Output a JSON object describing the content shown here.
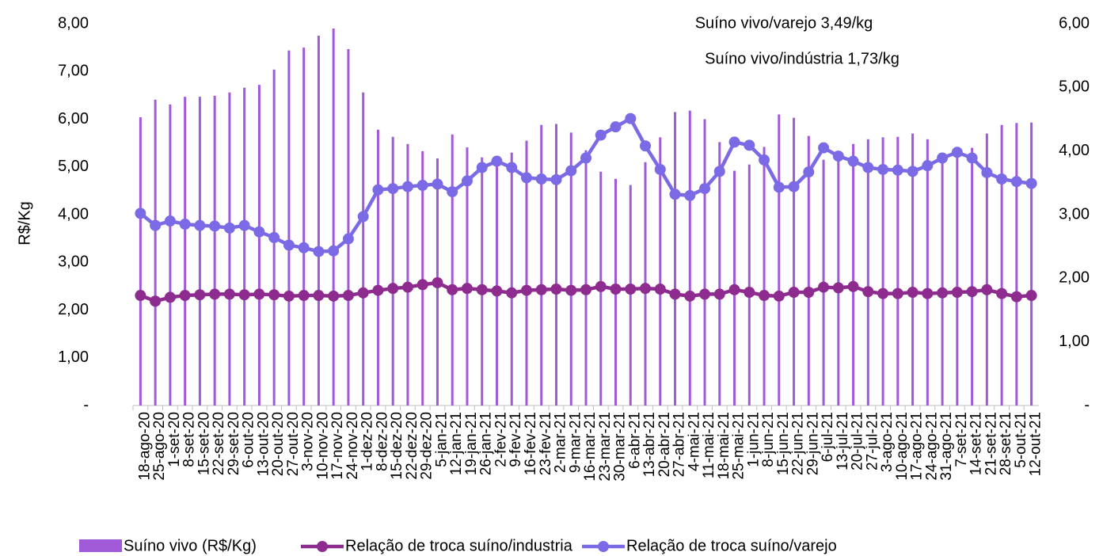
{
  "chart_data": {
    "type": "combo",
    "y_axis_label": "R$/Kg",
    "annotations": [
      "Suíno vivo/varejo 3,49/kg",
      "Suíno vivo/indústria 1,73/kg"
    ],
    "categories": [
      "18-ago-20",
      "25-ago-20",
      "1-set-20",
      "8-set-20",
      "15-set-20",
      "22-set-20",
      "29-set-20",
      "6-out-20",
      "13-out-20",
      "20-out-20",
      "27-out-20",
      "3-nov-20",
      "10-nov-20",
      "17-nov-20",
      "24-nov-20",
      "1-dez-20",
      "8-dez-20",
      "15-dez-20",
      "22-dez-20",
      "29-dez-20",
      "5-jan-21",
      "12-jan-21",
      "19-jan-21",
      "26-jan-21",
      "2-fev-21",
      "9-fev-21",
      "16-fev-21",
      "23-fev-21",
      "2-mar-21",
      "9-mar-21",
      "16-mar-21",
      "23-mar-21",
      "30-mar-21",
      "6-abr-21",
      "13-abr-21",
      "20-abr-21",
      "27-abr-21",
      "4-mai-21",
      "11-mai-21",
      "18-mai-21",
      "25-mai-21",
      "1-jun-21",
      "8-jun-21",
      "15-jun-21",
      "22-jun-21",
      "29-jun-21",
      "6-jul-21",
      "13-jul-21",
      "20-jul-21",
      "27-jul-21",
      "3-ago-21",
      "10-ago-21",
      "17-ago-21",
      "24-ago-21",
      "31-ago-21",
      "7-set-21",
      "14-set-21",
      "21-set-21",
      "28-set-21",
      "5-out-21",
      "12-out-21"
    ],
    "series": [
      {
        "name": "Suíno vivo (R$/Kg)",
        "type": "bar",
        "axis": "y",
        "color": "#a05ad8",
        "values": [
          6.04,
          6.41,
          6.31,
          6.47,
          6.47,
          6.49,
          6.56,
          6.66,
          6.72,
          7.04,
          7.44,
          7.5,
          7.75,
          7.9,
          7.47,
          6.56,
          5.78,
          5.63,
          5.48,
          5.33,
          5.18,
          5.68,
          5.41,
          5.2,
          5.2,
          5.3,
          5.55,
          5.88,
          5.9,
          5.72,
          5.35,
          4.9,
          4.75,
          4.62,
          5.1,
          5.62,
          6.15,
          6.18,
          6.0,
          5.52,
          4.92,
          5.05,
          5.42,
          6.1,
          6.03,
          5.65,
          5.15,
          5.3,
          5.48,
          5.58,
          5.62,
          5.63,
          5.7,
          5.58,
          5.2,
          5.35,
          5.4,
          5.7,
          5.88,
          5.92,
          5.93
        ]
      },
      {
        "name": "Relação de troca suíno/industria",
        "type": "line",
        "axis": "y2",
        "color": "#8e2b8e",
        "values": [
          1.73,
          1.64,
          1.7,
          1.73,
          1.74,
          1.75,
          1.75,
          1.74,
          1.75,
          1.74,
          1.72,
          1.73,
          1.73,
          1.72,
          1.73,
          1.77,
          1.81,
          1.84,
          1.86,
          1.9,
          1.93,
          1.82,
          1.84,
          1.82,
          1.8,
          1.77,
          1.81,
          1.82,
          1.83,
          1.81,
          1.82,
          1.87,
          1.83,
          1.83,
          1.84,
          1.83,
          1.75,
          1.72,
          1.75,
          1.75,
          1.82,
          1.78,
          1.73,
          1.72,
          1.78,
          1.78,
          1.86,
          1.85,
          1.87,
          1.79,
          1.76,
          1.76,
          1.78,
          1.76,
          1.77,
          1.78,
          1.79,
          1.82,
          1.76,
          1.71,
          1.73
        ]
      },
      {
        "name": "Relação de troca suíno/varejo",
        "type": "line",
        "axis": "y2",
        "color": "#7b6ae6",
        "values": [
          3.02,
          2.83,
          2.9,
          2.85,
          2.83,
          2.82,
          2.79,
          2.83,
          2.73,
          2.64,
          2.52,
          2.48,
          2.42,
          2.43,
          2.62,
          2.97,
          3.39,
          3.41,
          3.44,
          3.46,
          3.48,
          3.36,
          3.53,
          3.74,
          3.84,
          3.74,
          3.58,
          3.56,
          3.55,
          3.69,
          3.89,
          4.25,
          4.38,
          4.51,
          4.08,
          3.71,
          3.32,
          3.3,
          3.41,
          3.68,
          4.14,
          4.09,
          3.86,
          3.43,
          3.44,
          3.67,
          4.05,
          3.92,
          3.84,
          3.74,
          3.71,
          3.7,
          3.68,
          3.77,
          3.89,
          3.98,
          3.89,
          3.66,
          3.56,
          3.52,
          3.49
        ]
      }
    ],
    "ylim": [
      0,
      8
    ],
    "yticks": [
      {
        "value": 0,
        "label": "-"
      },
      {
        "value": 1,
        "label": "1,00"
      },
      {
        "value": 2,
        "label": "2,00"
      },
      {
        "value": 3,
        "label": "3,00"
      },
      {
        "value": 4,
        "label": "4,00"
      },
      {
        "value": 5,
        "label": "5,00"
      },
      {
        "value": 6,
        "label": "6,00"
      },
      {
        "value": 7,
        "label": "7,00"
      },
      {
        "value": 8,
        "label": "8,00"
      }
    ],
    "y2lim": [
      0,
      6
    ],
    "y2ticks": [
      {
        "value": 0,
        "label": "-"
      },
      {
        "value": 1,
        "label": "1,00"
      },
      {
        "value": 2,
        "label": "2,00"
      },
      {
        "value": 3,
        "label": "3,00"
      },
      {
        "value": 4,
        "label": "4,00"
      },
      {
        "value": 5,
        "label": "5,00"
      },
      {
        "value": 6,
        "label": "6,00"
      }
    ],
    "legend": "bottom"
  }
}
